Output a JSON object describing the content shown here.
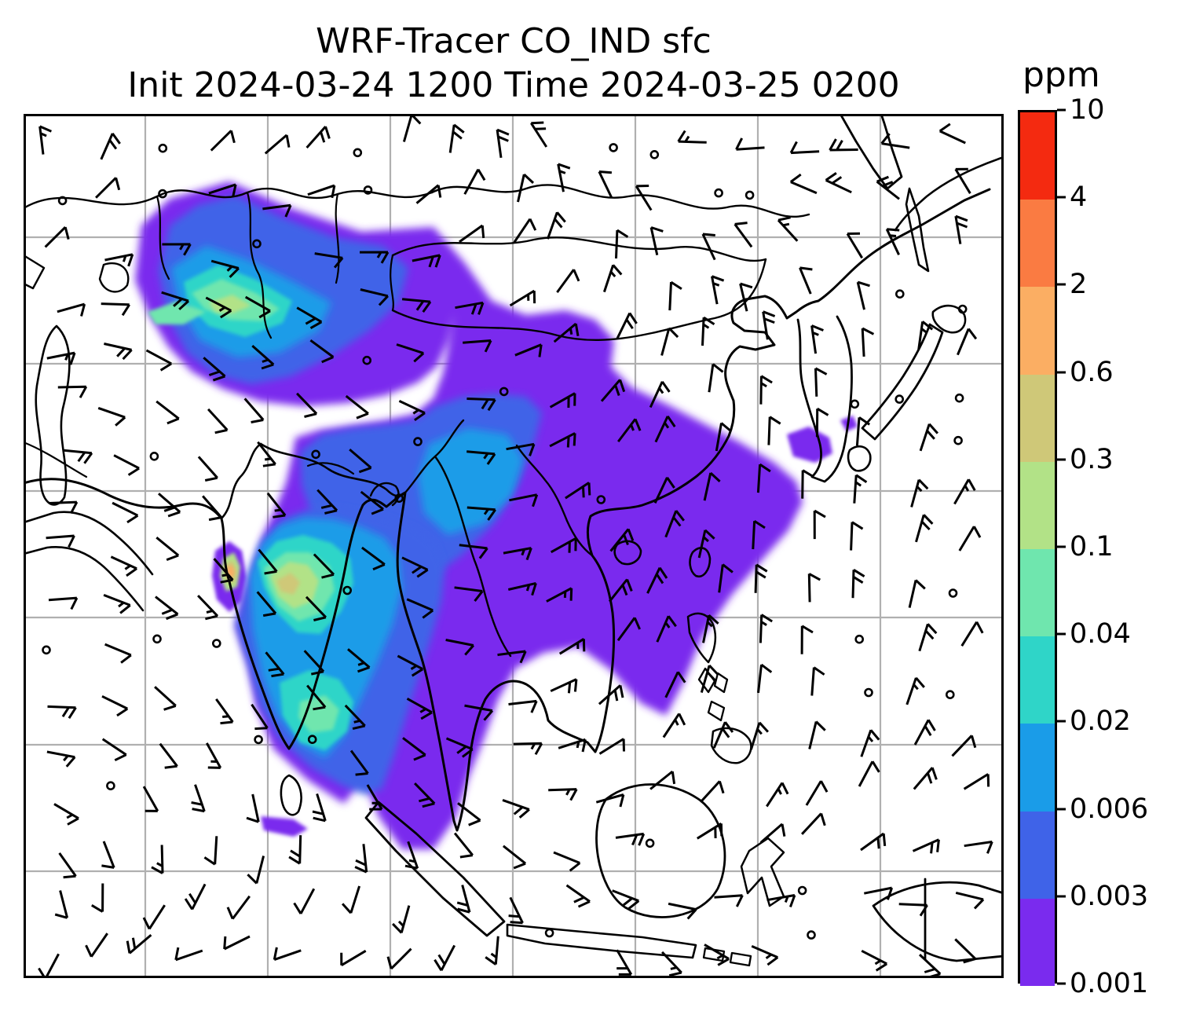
{
  "figure": {
    "title_line1": "WRF-Tracer CO_IND sfc",
    "title_line2": "Init 2024-03-24 1200 Time 2024-03-25 0200"
  },
  "chart_data": {
    "type": "heatmap",
    "title": "WRF-Tracer CO_IND sfc",
    "subtitle": "Init 2024-03-24 1200 Time 2024-03-25 0200",
    "variable": "CO_IND surface tracer concentration",
    "unit": "ppm",
    "init_time": "2024-03-24 1200",
    "valid_time": "2024-03-25 0200",
    "colorbar": {
      "label": "ppm",
      "tick_labels_top_to_bottom": [
        "10",
        "4",
        "2",
        "0.6",
        "0.3",
        "0.1",
        "0.04",
        "0.02",
        "0.006",
        "0.003",
        "0.001"
      ],
      "levels_top_to_bottom": [
        10,
        4,
        2,
        0.6,
        0.3,
        0.1,
        0.04,
        0.02,
        0.006,
        0.003,
        0.001
      ],
      "segment_colors_top_to_bottom": [
        "#f42a10",
        "#fa7b42",
        "#fbae63",
        "#cfc878",
        "#b2e287",
        "#6fe6ae",
        "#2fd5c8",
        "#1a9ce8",
        "#3f63e8",
        "#7a2bee"
      ]
    },
    "map": {
      "domain": "South / East Asia regional domain",
      "gridline_color": "#b0b0b0",
      "coastline_color": "#000000",
      "wind_barb_color": "#000000",
      "background_color": "#ffffff"
    },
    "field_regions": [
      {
        "name": "northwest-india-pakistan-plume",
        "peak_range_ppm": "0.04-0.1"
      },
      {
        "name": "indo-gangetic-bangladesh-plume",
        "peak_range_ppm": "0.3-0.6"
      },
      {
        "name": "west-india-coast-hotspot",
        "peak_range_ppm": "0.6-2"
      },
      {
        "name": "bay-of-bengal-plume",
        "peak_range_ppm": "0.04-0.1"
      },
      {
        "name": "china-southeast-asia-broad-plume",
        "peak_range_ppm": "0.001-0.006"
      },
      {
        "name": "korea-coast-patches",
        "peak_range_ppm": "0.001-0.003"
      }
    ]
  }
}
